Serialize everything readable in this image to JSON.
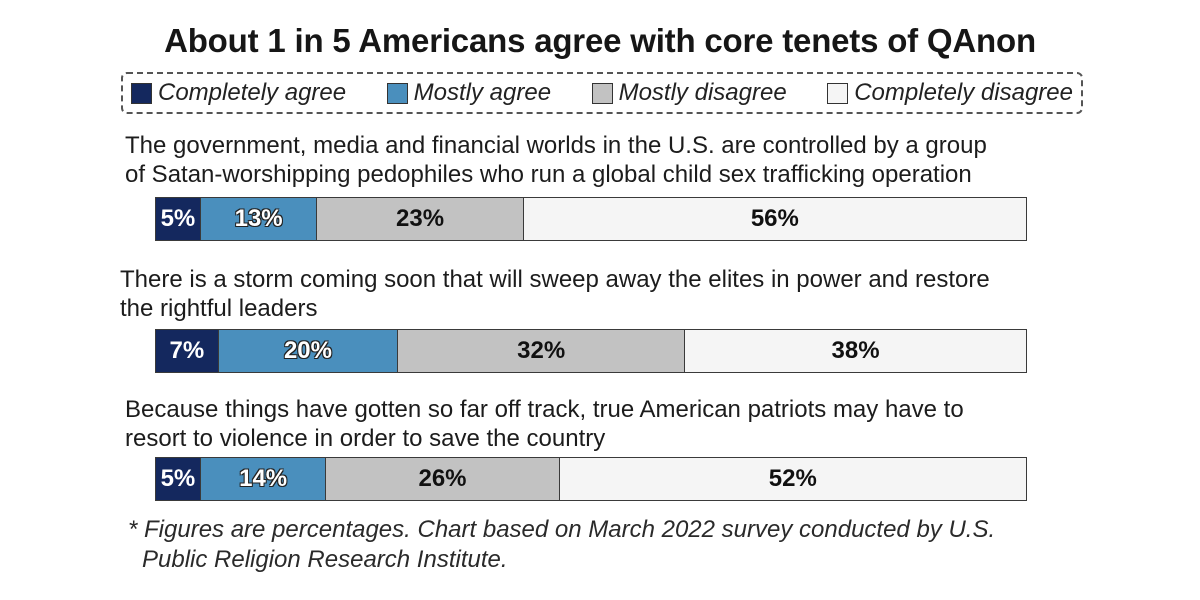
{
  "title": "About 1 in 5 Americans agree with core tenets of QAnon",
  "colors": {
    "completely_agree": "#14285e",
    "mostly_agree": "#4a8fbd",
    "mostly_disagree": "#c2c2c2",
    "completely_disagree": "#f5f5f5"
  },
  "legend": [
    {
      "label": "Completely agree",
      "color": "#14285e"
    },
    {
      "label": "Mostly agree",
      "color": "#4a8fbd"
    },
    {
      "label": "Mostly disagree",
      "color": "#c2c2c2"
    },
    {
      "label": "Completely disagree",
      "color": "#f5f5f5"
    }
  ],
  "chart_data": {
    "type": "bar",
    "orientation": "horizontal-stacked",
    "unit": "%",
    "series": [
      {
        "name": "Completely agree",
        "values": [
          5,
          7,
          5
        ]
      },
      {
        "name": "Mostly agree",
        "values": [
          13,
          20,
          14
        ]
      },
      {
        "name": "Mostly disagree",
        "values": [
          23,
          32,
          26
        ]
      },
      {
        "name": "Completely disagree",
        "values": [
          56,
          38,
          52
        ]
      }
    ],
    "categories": [
      "The government, media and financial worlds in the U.S. are controlled by a group of Satan-worshipping pedophiles who run a global child sex trafficking operation",
      "There is a storm coming soon that will sweep away the elites in power and restore the rightful leaders",
      "Because things have gotten so far off track, true American patriots may have to resort to violence in order to save the country"
    ],
    "labels": [
      [
        "5%",
        "13%",
        "23%",
        "56%"
      ],
      [
        "7%",
        "20%",
        "32%",
        "38%"
      ],
      [
        "5%",
        "14%",
        "26%",
        "52%"
      ]
    ]
  },
  "statements": {
    "s1_line1": "The government, media and financial worlds in the U.S. are controlled by a group",
    "s1_line2": "of Satan-worshipping pedophiles who run a global child sex trafficking operation",
    "s2_line1": "There is a storm coming soon that will sweep away the elites in power and restore",
    "s2_line2": "the rightful leaders",
    "s3_line1": "Because things have gotten so far off track, true American patriots may have to",
    "s3_line2": "resort to violence in order to save the country"
  },
  "footnote": {
    "line1": "* Figures are percentages. Chart based on March 2022 survey conducted by U.S.",
    "line2": "Public Religion Research Institute."
  }
}
